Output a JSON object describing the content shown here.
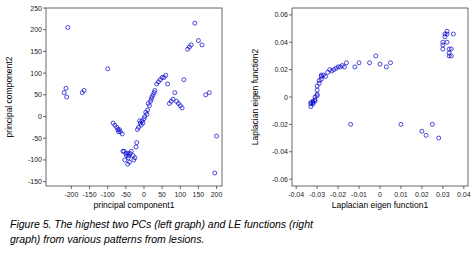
{
  "chart_data": [
    {
      "type": "scatter",
      "xlabel": "principal component1",
      "ylabel": "principal component2",
      "xlim": [
        -270,
        215
      ],
      "ylim": [
        -160,
        250
      ],
      "xticks": [
        -200,
        -150,
        -100,
        -50,
        0,
        50,
        100,
        150,
        200
      ],
      "yticks": [
        -150,
        -100,
        -50,
        0,
        50,
        100,
        150,
        200,
        250
      ],
      "color": "#0000CD",
      "marker": "open-circle",
      "x": [
        -220,
        -215,
        -213,
        -210,
        -170,
        -165,
        -100,
        -85,
        -80,
        -75,
        -72,
        -70,
        -68,
        -65,
        -60,
        -58,
        -55,
        -53,
        -50,
        -48,
        -45,
        -44,
        -43,
        -42,
        -40,
        -38,
        -35,
        -30,
        -28,
        -25,
        -22,
        -20,
        -18,
        -15,
        -12,
        -10,
        -8,
        -5,
        -3,
        0,
        2,
        5,
        8,
        10,
        12,
        15,
        18,
        20,
        22,
        25,
        28,
        30,
        35,
        40,
        45,
        50,
        55,
        60,
        65,
        70,
        75,
        80,
        85,
        90,
        95,
        100,
        105,
        110,
        120,
        125,
        130,
        140,
        150,
        160,
        170,
        180,
        195,
        200
      ],
      "values": [
        55,
        65,
        45,
        205,
        55,
        60,
        110,
        -15,
        -20,
        -25,
        -30,
        -35,
        -30,
        -35,
        -40,
        -80,
        -80,
        -100,
        -85,
        -90,
        -110,
        -85,
        -95,
        -90,
        -105,
        -85,
        -80,
        -90,
        -100,
        -95,
        -70,
        -60,
        -30,
        -25,
        -10,
        -15,
        -20,
        -10,
        -15,
        -5,
        0,
        10,
        5,
        15,
        30,
        25,
        35,
        40,
        45,
        50,
        55,
        60,
        75,
        80,
        85,
        90,
        90,
        95,
        75,
        30,
        35,
        40,
        55,
        35,
        30,
        25,
        20,
        85,
        155,
        160,
        165,
        215,
        175,
        165,
        50,
        55,
        -130,
        -45
      ]
    },
    {
      "type": "scatter",
      "xlabel": "Laplacian eigen function1",
      "ylabel": "Laplacian eigen function2",
      "xlim": [
        -0.042,
        0.042
      ],
      "ylim": [
        -0.065,
        0.065
      ],
      "xticks": [
        -0.04,
        -0.03,
        -0.02,
        -0.01,
        0,
        0.01,
        0.02,
        0.03,
        0.04
      ],
      "yticks": [
        -0.06,
        -0.04,
        -0.02,
        0,
        0.02,
        0.04,
        0.06
      ],
      "color": "#0000CD",
      "marker": "open-circle",
      "x": [
        -0.033,
        -0.033,
        -0.033,
        -0.032,
        -0.032,
        -0.032,
        -0.031,
        -0.031,
        -0.031,
        -0.03,
        -0.03,
        -0.03,
        -0.03,
        -0.029,
        -0.029,
        -0.028,
        -0.028,
        -0.028,
        -0.027,
        -0.026,
        -0.025,
        -0.024,
        -0.023,
        -0.022,
        -0.021,
        -0.02,
        -0.019,
        -0.018,
        -0.017,
        -0.016,
        -0.014,
        -0.012,
        -0.01,
        -0.005,
        -0.002,
        0.0,
        0.003,
        0.005,
        0.01,
        0.02,
        0.022,
        0.025,
        0.028,
        0.03,
        0.03,
        0.03,
        0.031,
        0.031,
        0.032,
        0.032,
        0.032,
        0.033,
        0.033,
        0.033,
        0.034,
        0.034,
        0.035
      ],
      "values": [
        -0.004,
        -0.005,
        -0.007,
        -0.005,
        -0.004,
        -0.003,
        -0.003,
        -0.002,
        0.0,
        0.001,
        0.002,
        0.005,
        0.008,
        0.01,
        0.012,
        0.013,
        0.015,
        0.016,
        0.016,
        0.015,
        0.018,
        0.02,
        0.019,
        0.02,
        0.021,
        0.022,
        0.022,
        0.023,
        0.022,
        0.025,
        -0.02,
        0.022,
        0.025,
        0.025,
        0.03,
        0.024,
        0.022,
        0.025,
        -0.02,
        -0.025,
        -0.028,
        -0.02,
        -0.03,
        0.038,
        0.035,
        0.04,
        0.044,
        0.046,
        0.04,
        0.046,
        0.048,
        0.032,
        0.035,
        0.03,
        0.03,
        0.035,
        0.046
      ]
    }
  ],
  "caption": [
    "Figure 5. The highest two PCs (left graph) and LE functions (right",
    "graph) from various patterns from lesions."
  ]
}
